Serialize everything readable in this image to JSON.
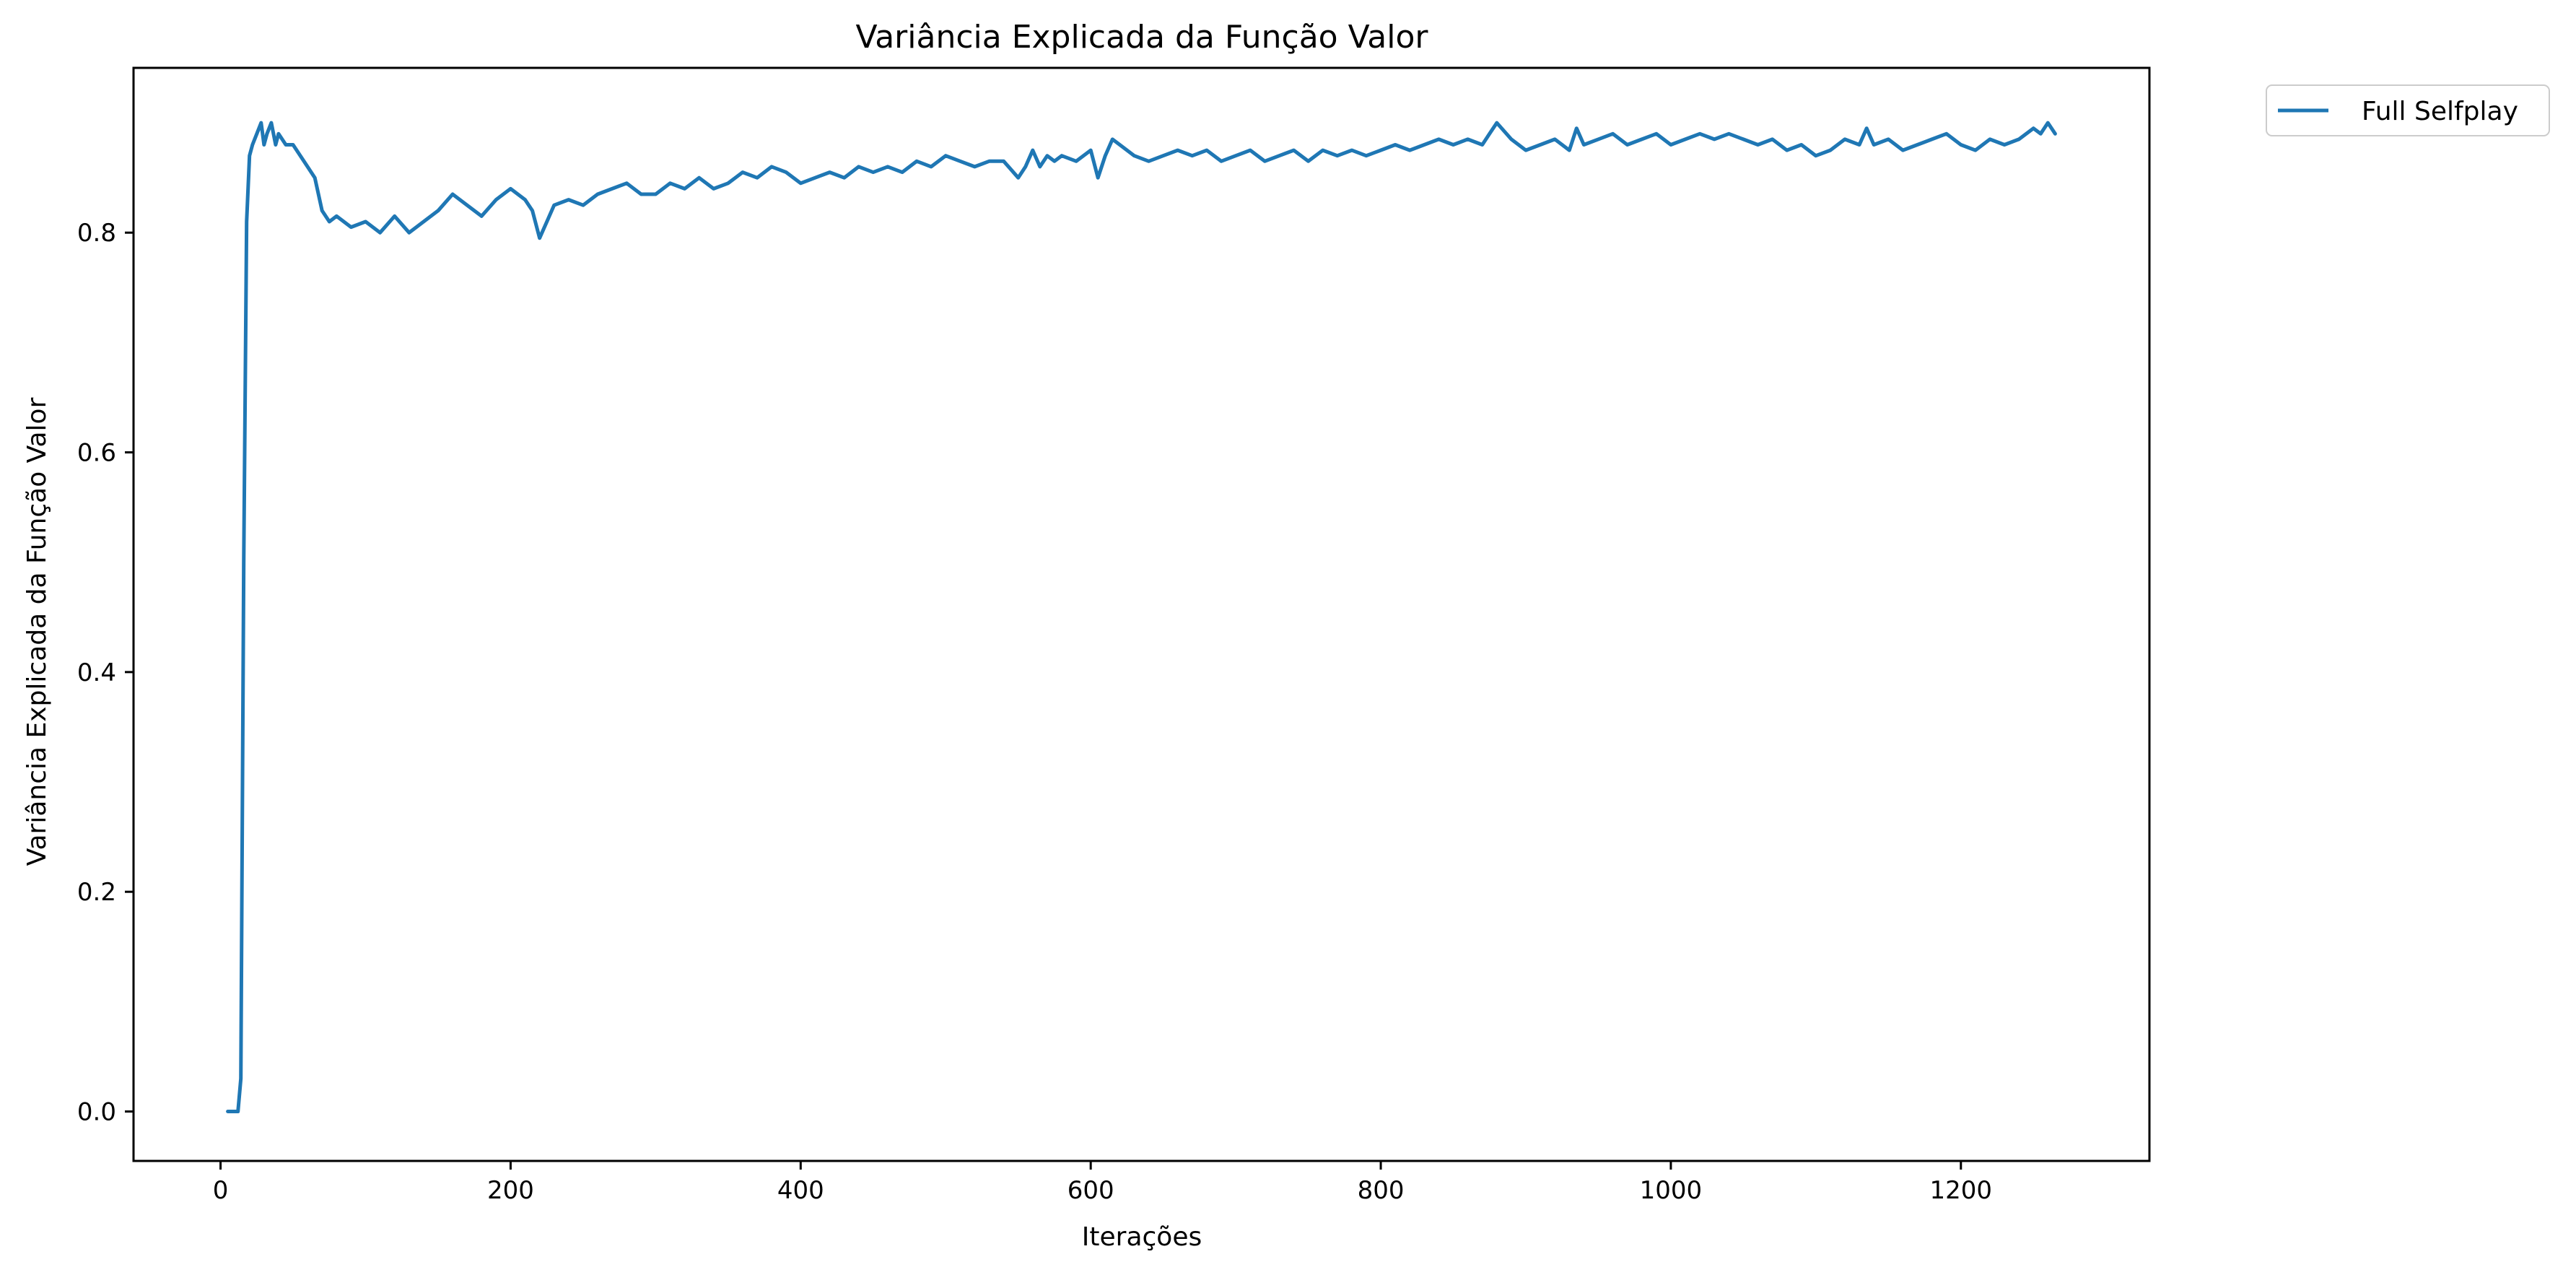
{
  "chart_data": {
    "type": "line",
    "title": "Variância Explicada da Função Valor",
    "xlabel": "Iterações",
    "ylabel": "Variância Explicada da Função Valor",
    "xlim": [
      -60,
      1330
    ],
    "ylim": [
      -0.045,
      0.95
    ],
    "xticks": [
      0,
      200,
      400,
      600,
      800,
      1000,
      1200
    ],
    "xtick_labels": [
      "0",
      "200",
      "400",
      "600",
      "800",
      "1000",
      "1200"
    ],
    "yticks": [
      0.0,
      0.2,
      0.4,
      0.6,
      0.8
    ],
    "ytick_labels": [
      "0.0",
      "0.2",
      "0.4",
      "0.6",
      "0.8"
    ],
    "grid": false,
    "legend": {
      "placement": "outside-top-right"
    },
    "colors": {
      "series": "#1f77b4",
      "axes": "#000000"
    },
    "series": [
      {
        "name": "Full Selfplay",
        "x": [
          5,
          8,
          12,
          14,
          16,
          18,
          20,
          22,
          25,
          28,
          30,
          32,
          35,
          38,
          40,
          45,
          50,
          55,
          60,
          65,
          70,
          75,
          80,
          90,
          100,
          110,
          120,
          130,
          140,
          150,
          160,
          170,
          180,
          190,
          200,
          210,
          215,
          220,
          225,
          230,
          240,
          250,
          260,
          270,
          280,
          290,
          300,
          310,
          320,
          330,
          340,
          350,
          360,
          370,
          380,
          390,
          400,
          410,
          420,
          430,
          440,
          450,
          460,
          470,
          480,
          490,
          500,
          510,
          520,
          530,
          540,
          550,
          555,
          560,
          565,
          570,
          575,
          580,
          590,
          600,
          605,
          610,
          615,
          620,
          630,
          640,
          650,
          660,
          670,
          680,
          690,
          700,
          710,
          720,
          730,
          740,
          750,
          760,
          770,
          780,
          790,
          800,
          810,
          820,
          830,
          840,
          850,
          860,
          870,
          875,
          880,
          890,
          900,
          910,
          920,
          930,
          935,
          940,
          950,
          960,
          970,
          980,
          990,
          1000,
          1010,
          1020,
          1030,
          1040,
          1050,
          1060,
          1070,
          1080,
          1090,
          1100,
          1110,
          1120,
          1130,
          1135,
          1140,
          1150,
          1160,
          1170,
          1180,
          1190,
          1200,
          1210,
          1220,
          1230,
          1240,
          1250,
          1255,
          1260,
          1265
        ],
        "y": [
          0.0,
          0.0,
          0.0,
          0.03,
          0.5,
          0.81,
          0.87,
          0.88,
          0.89,
          0.9,
          0.88,
          0.89,
          0.9,
          0.88,
          0.89,
          0.88,
          0.88,
          0.87,
          0.86,
          0.85,
          0.82,
          0.81,
          0.815,
          0.805,
          0.81,
          0.8,
          0.815,
          0.8,
          0.81,
          0.82,
          0.835,
          0.825,
          0.815,
          0.83,
          0.84,
          0.83,
          0.82,
          0.795,
          0.81,
          0.825,
          0.83,
          0.825,
          0.835,
          0.84,
          0.845,
          0.835,
          0.835,
          0.845,
          0.84,
          0.85,
          0.84,
          0.845,
          0.855,
          0.85,
          0.86,
          0.855,
          0.845,
          0.85,
          0.855,
          0.85,
          0.86,
          0.855,
          0.86,
          0.855,
          0.865,
          0.86,
          0.87,
          0.865,
          0.86,
          0.865,
          0.865,
          0.85,
          0.86,
          0.875,
          0.86,
          0.87,
          0.865,
          0.87,
          0.865,
          0.875,
          0.85,
          0.87,
          0.885,
          0.88,
          0.87,
          0.865,
          0.87,
          0.875,
          0.87,
          0.875,
          0.865,
          0.87,
          0.875,
          0.865,
          0.87,
          0.875,
          0.865,
          0.875,
          0.87,
          0.875,
          0.87,
          0.875,
          0.88,
          0.875,
          0.88,
          0.885,
          0.88,
          0.885,
          0.88,
          0.89,
          0.9,
          0.885,
          0.875,
          0.88,
          0.885,
          0.875,
          0.895,
          0.88,
          0.885,
          0.89,
          0.88,
          0.885,
          0.89,
          0.88,
          0.885,
          0.89,
          0.885,
          0.89,
          0.885,
          0.88,
          0.885,
          0.875,
          0.88,
          0.87,
          0.875,
          0.885,
          0.88,
          0.895,
          0.88,
          0.885,
          0.875,
          0.88,
          0.885,
          0.89,
          0.88,
          0.875,
          0.885,
          0.88,
          0.885,
          0.895,
          0.89,
          0.9,
          0.89
        ]
      }
    ]
  }
}
